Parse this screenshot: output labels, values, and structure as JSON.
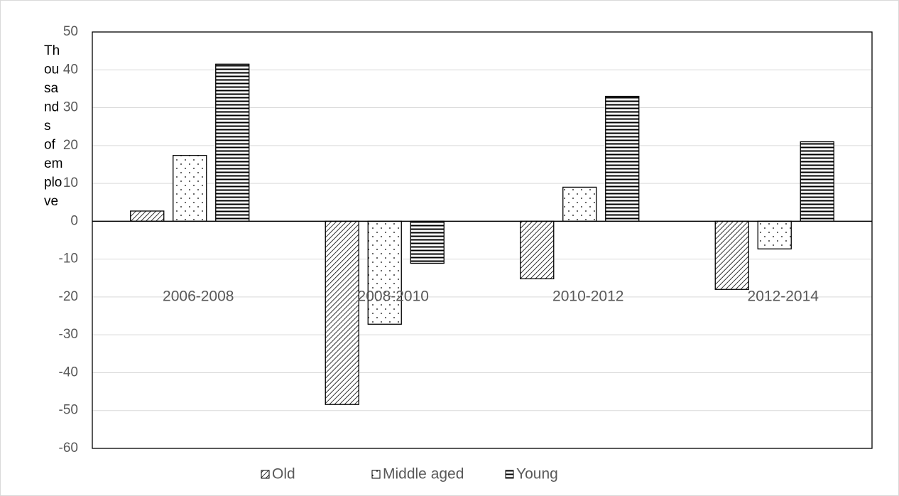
{
  "chart_data": {
    "type": "bar",
    "y_label_lines": [
      "Th",
      "ou",
      "sa",
      "nd",
      "s",
      "of",
      "em",
      "plo",
      "ve"
    ],
    "categories": [
      "2006-2008",
      "2008-2010",
      "2010-2012",
      "2012-2014"
    ],
    "series": [
      {
        "name": "Old",
        "color": "#000000",
        "pattern": "diagonal",
        "values": [
          2.7,
          -48.4,
          -15.2,
          -18.0
        ]
      },
      {
        "name": "Middle aged",
        "color": "#000000",
        "pattern": "dots",
        "values": [
          17.4,
          -27.2,
          9.0,
          -7.3
        ]
      },
      {
        "name": "Young",
        "color": "#000000",
        "pattern": "horizontal",
        "values": [
          41.5,
          -11.1,
          33.0,
          21.0
        ]
      }
    ],
    "ylim": [
      -60,
      50
    ],
    "yticks": [
      -60,
      -50,
      -40,
      -30,
      -20,
      -10,
      0,
      10,
      20,
      30,
      40,
      50
    ],
    "grid": true,
    "legend": "bottom"
  }
}
